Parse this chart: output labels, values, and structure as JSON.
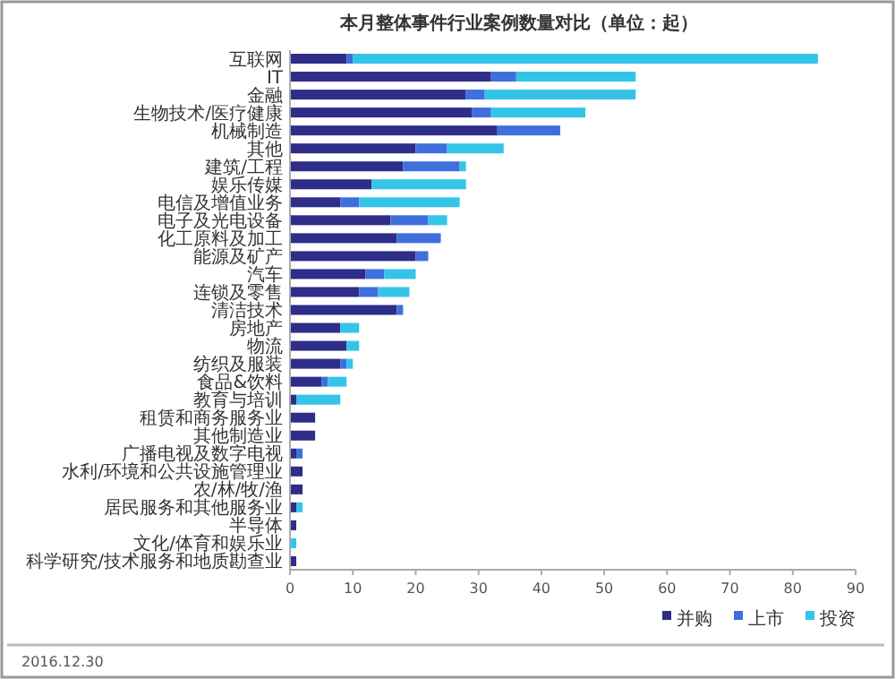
{
  "chart_data": {
    "type": "bar",
    "orientation": "horizontal",
    "stacked": true,
    "title": "本月整体事件行业案例数量对比（单位：起）",
    "categories": [
      "互联网",
      "IT",
      "金融",
      "生物技术/医疗健康",
      "机械制造",
      "其他",
      "建筑/工程",
      "娱乐传媒",
      "电信及增值业务",
      "电子及光电设备",
      "化工原料及加工",
      "能源及矿产",
      "汽车",
      "连锁及零售",
      "清洁技术",
      "房地产",
      "物流",
      "纺织及服装",
      "食品&饮料",
      "教育与培训",
      "租赁和商务服务业",
      "其他制造业",
      "广播电视及数字电视",
      "水利/环境和公共设施管理业",
      "农/林/牧/渔",
      "居民服务和其他服务业",
      "半导体",
      "文化/体育和娱乐业",
      "科学研究/技术服务和地质勘查业"
    ],
    "series": [
      {
        "name": "并购",
        "color": "#2e2d88",
        "values": [
          9,
          32,
          28,
          29,
          33,
          20,
          18,
          13,
          8,
          16,
          17,
          20,
          12,
          11,
          17,
          8,
          9,
          8,
          5,
          1,
          4,
          4,
          1,
          2,
          2,
          1,
          1,
          0,
          1
        ]
      },
      {
        "name": "上市",
        "color": "#3f6fdc",
        "values": [
          1,
          4,
          3,
          3,
          10,
          5,
          9,
          0,
          3,
          6,
          7,
          2,
          3,
          3,
          1,
          0,
          0,
          1,
          1,
          0,
          0,
          0,
          1,
          0,
          0,
          0,
          0,
          0,
          0
        ]
      },
      {
        "name": "投资",
        "color": "#33c4e8",
        "values": [
          74,
          19,
          24,
          15,
          0,
          9,
          1,
          15,
          16,
          3,
          0,
          0,
          5,
          5,
          0,
          3,
          2,
          1,
          3,
          7,
          0,
          0,
          0,
          0,
          0,
          1,
          0,
          1,
          0
        ]
      }
    ],
    "xlim": [
      0,
      90
    ],
    "xticks": [
      0,
      10,
      20,
      30,
      40,
      50,
      60,
      70,
      80,
      90
    ],
    "legend": "bottom right",
    "grid": false,
    "annotations": [
      "2016.12.30"
    ]
  }
}
